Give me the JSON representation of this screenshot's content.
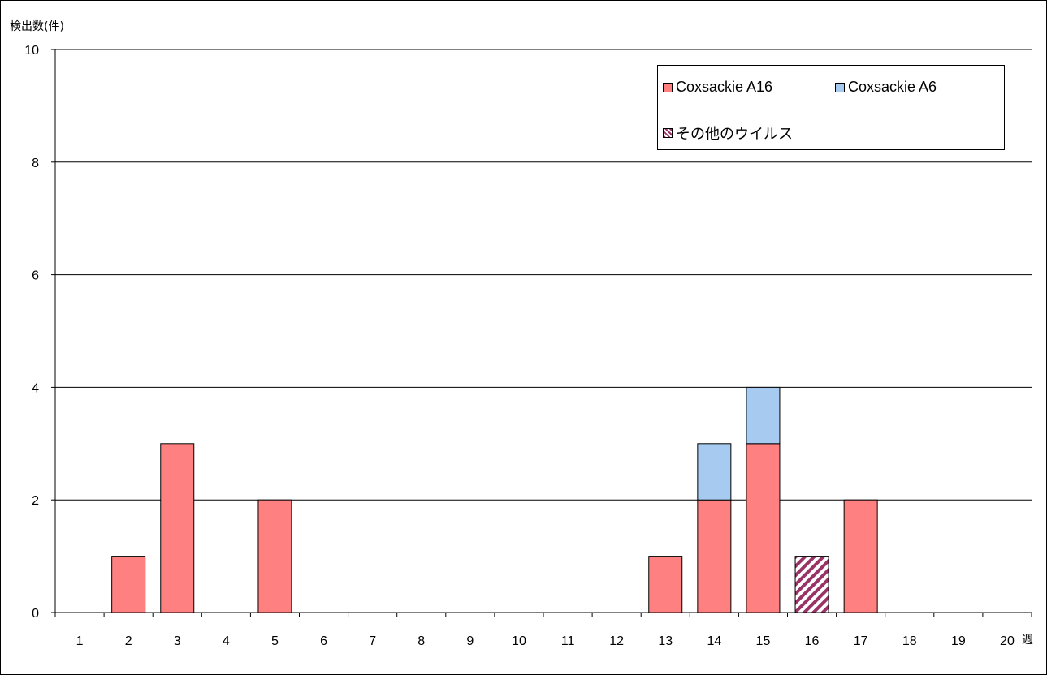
{
  "chart_data": {
    "type": "bar",
    "stacked": true,
    "y_axis_label": "検出数(件)",
    "x_axis_label": "週",
    "categories": [
      "1",
      "2",
      "3",
      "4",
      "5",
      "6",
      "7",
      "8",
      "9",
      "10",
      "11",
      "12",
      "13",
      "14",
      "15",
      "16",
      "17",
      "18",
      "19",
      "20"
    ],
    "ylim": [
      0,
      10
    ],
    "yticks": [
      0,
      2,
      4,
      6,
      8,
      10
    ],
    "grid": true,
    "legend_position": "top-right",
    "series": [
      {
        "name": "Coxsackie A16",
        "color": "#ff8080",
        "pattern": "solid",
        "values": [
          0,
          1,
          3,
          0,
          2,
          0,
          0,
          0,
          0,
          0,
          0,
          0,
          1,
          2,
          3,
          0,
          2,
          0,
          0,
          0
        ]
      },
      {
        "name": "Coxsackie A6",
        "color": "#a6caf0",
        "pattern": "solid",
        "values": [
          0,
          0,
          0,
          0,
          0,
          0,
          0,
          0,
          0,
          0,
          0,
          0,
          0,
          1,
          1,
          0,
          0,
          0,
          0,
          0
        ]
      },
      {
        "name": "その他のウイルス",
        "color": "#993366",
        "pattern": "diagonal-stripes",
        "values": [
          0,
          0,
          0,
          0,
          0,
          0,
          0,
          0,
          0,
          0,
          0,
          0,
          0,
          0,
          0,
          1,
          0,
          0,
          0,
          0
        ]
      }
    ]
  }
}
